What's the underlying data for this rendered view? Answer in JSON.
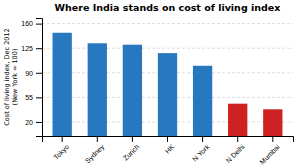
{
  "chart_data": {
    "type": "bar",
    "title": "Where India stands on cost of living index",
    "ylabel": [
      "Cost of living index, Dec 2012",
      "(New York = 100)"
    ],
    "categories": [
      "Tokyo",
      "Sydney",
      "Zurich",
      "HK",
      "N York",
      "N Delhi",
      "Mumbai"
    ],
    "values": [
      147,
      132,
      130,
      118,
      100,
      46,
      38
    ],
    "colors": [
      "#2878c0",
      "#2878c0",
      "#2878c0",
      "#2878c0",
      "#2878c0",
      "#cc2222",
      "#cc2222"
    ],
    "ylim": [
      0,
      168
    ],
    "yticks": [
      20,
      55,
      90,
      125,
      160
    ],
    "grid": true
  }
}
